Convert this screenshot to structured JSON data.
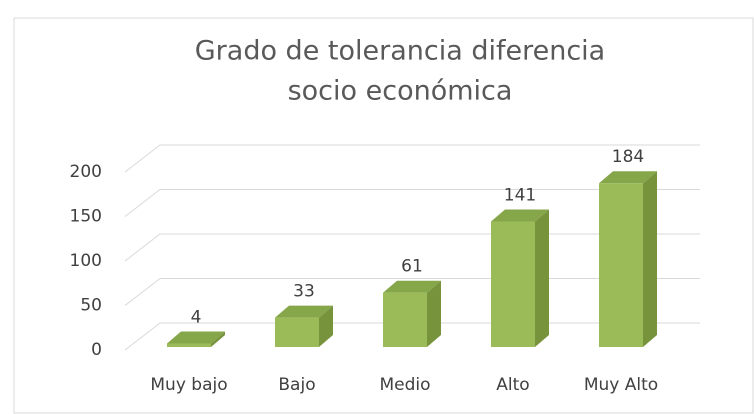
{
  "chart_data": {
    "type": "bar3d",
    "title": "Grado de tolerancia diferencia socio económica",
    "categories": [
      "Muy bajo",
      "Bajo",
      "Medio",
      "Alto",
      "Muy Alto"
    ],
    "values": [
      4,
      33,
      61,
      141,
      184
    ],
    "color": "#9bbb59",
    "ylim": [
      0,
      200
    ],
    "yticks": [
      0,
      50,
      100,
      150,
      200
    ],
    "grid": true
  }
}
